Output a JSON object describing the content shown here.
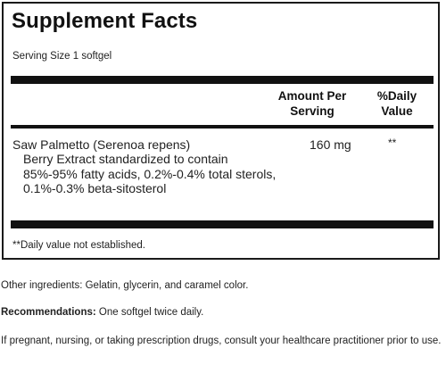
{
  "supplement_facts": {
    "title": "Supplement Facts",
    "serving_size": "Serving Size 1 softgel",
    "header_amount_line1": "Amount Per",
    "header_amount_line2": "Serving",
    "header_dv_line1": "%Daily",
    "header_dv_line2": "Value",
    "rows": [
      {
        "name": "Saw Palmetto (Serenoa repens)",
        "detail": "Berry Extract standardized to contain 85%-95% fatty acids, 0.2%-0.4% total sterols, 0.1%-0.3% beta-sitosterol",
        "amount": "160 mg",
        "daily_value": "**"
      }
    ],
    "footnote": "**Daily value not established."
  },
  "other_ingredients": "Other ingredients: Gelatin, glycerin, and caramel color.",
  "recommendations": {
    "label": "Recommendations:",
    "text": " One softgel twice daily."
  },
  "warning": "If pregnant, nursing, or taking prescription drugs, consult your healthcare practitioner prior to use."
}
